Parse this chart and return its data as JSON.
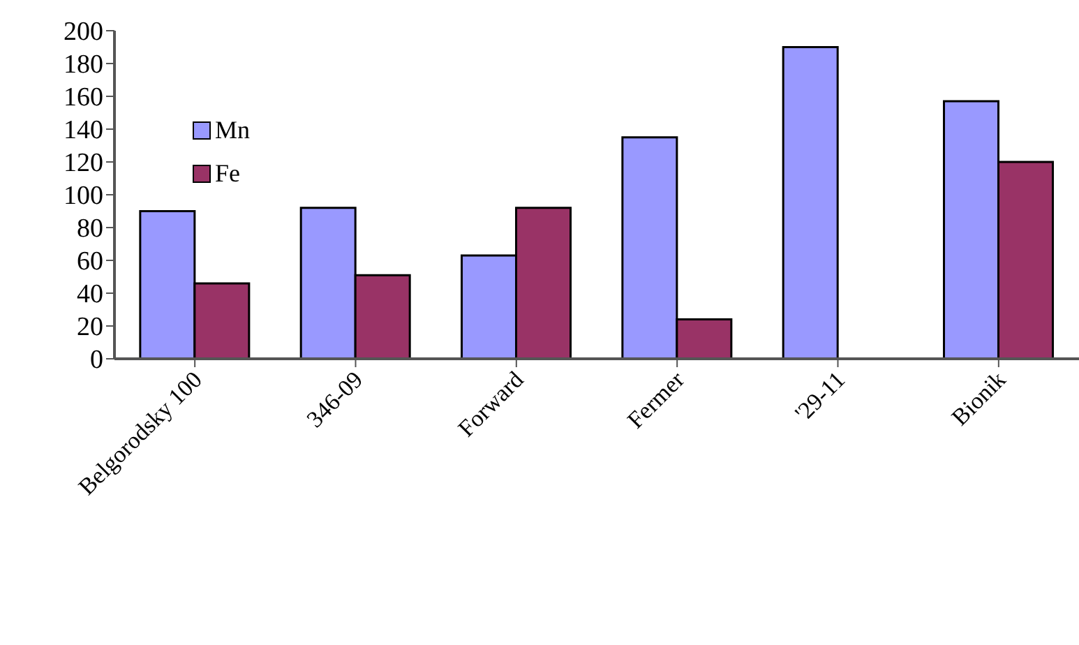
{
  "chart_data": {
    "type": "bar",
    "categories": [
      "Belgorodsky 100",
      "346-09",
      "Forward",
      "Fermer",
      "'29-11",
      "Bionik"
    ],
    "series": [
      {
        "name": "Mn",
        "color": "#9999ff",
        "values": [
          90,
          92,
          63,
          135,
          190,
          157
        ]
      },
      {
        "name": "Fe",
        "color": "#993366",
        "values": [
          46,
          51,
          92,
          24,
          null,
          120
        ]
      }
    ],
    "ylim": [
      0,
      200
    ],
    "yticks": [
      0,
      20,
      40,
      60,
      80,
      100,
      120,
      140,
      160,
      180,
      200
    ],
    "grid": false,
    "legend": "top left"
  }
}
